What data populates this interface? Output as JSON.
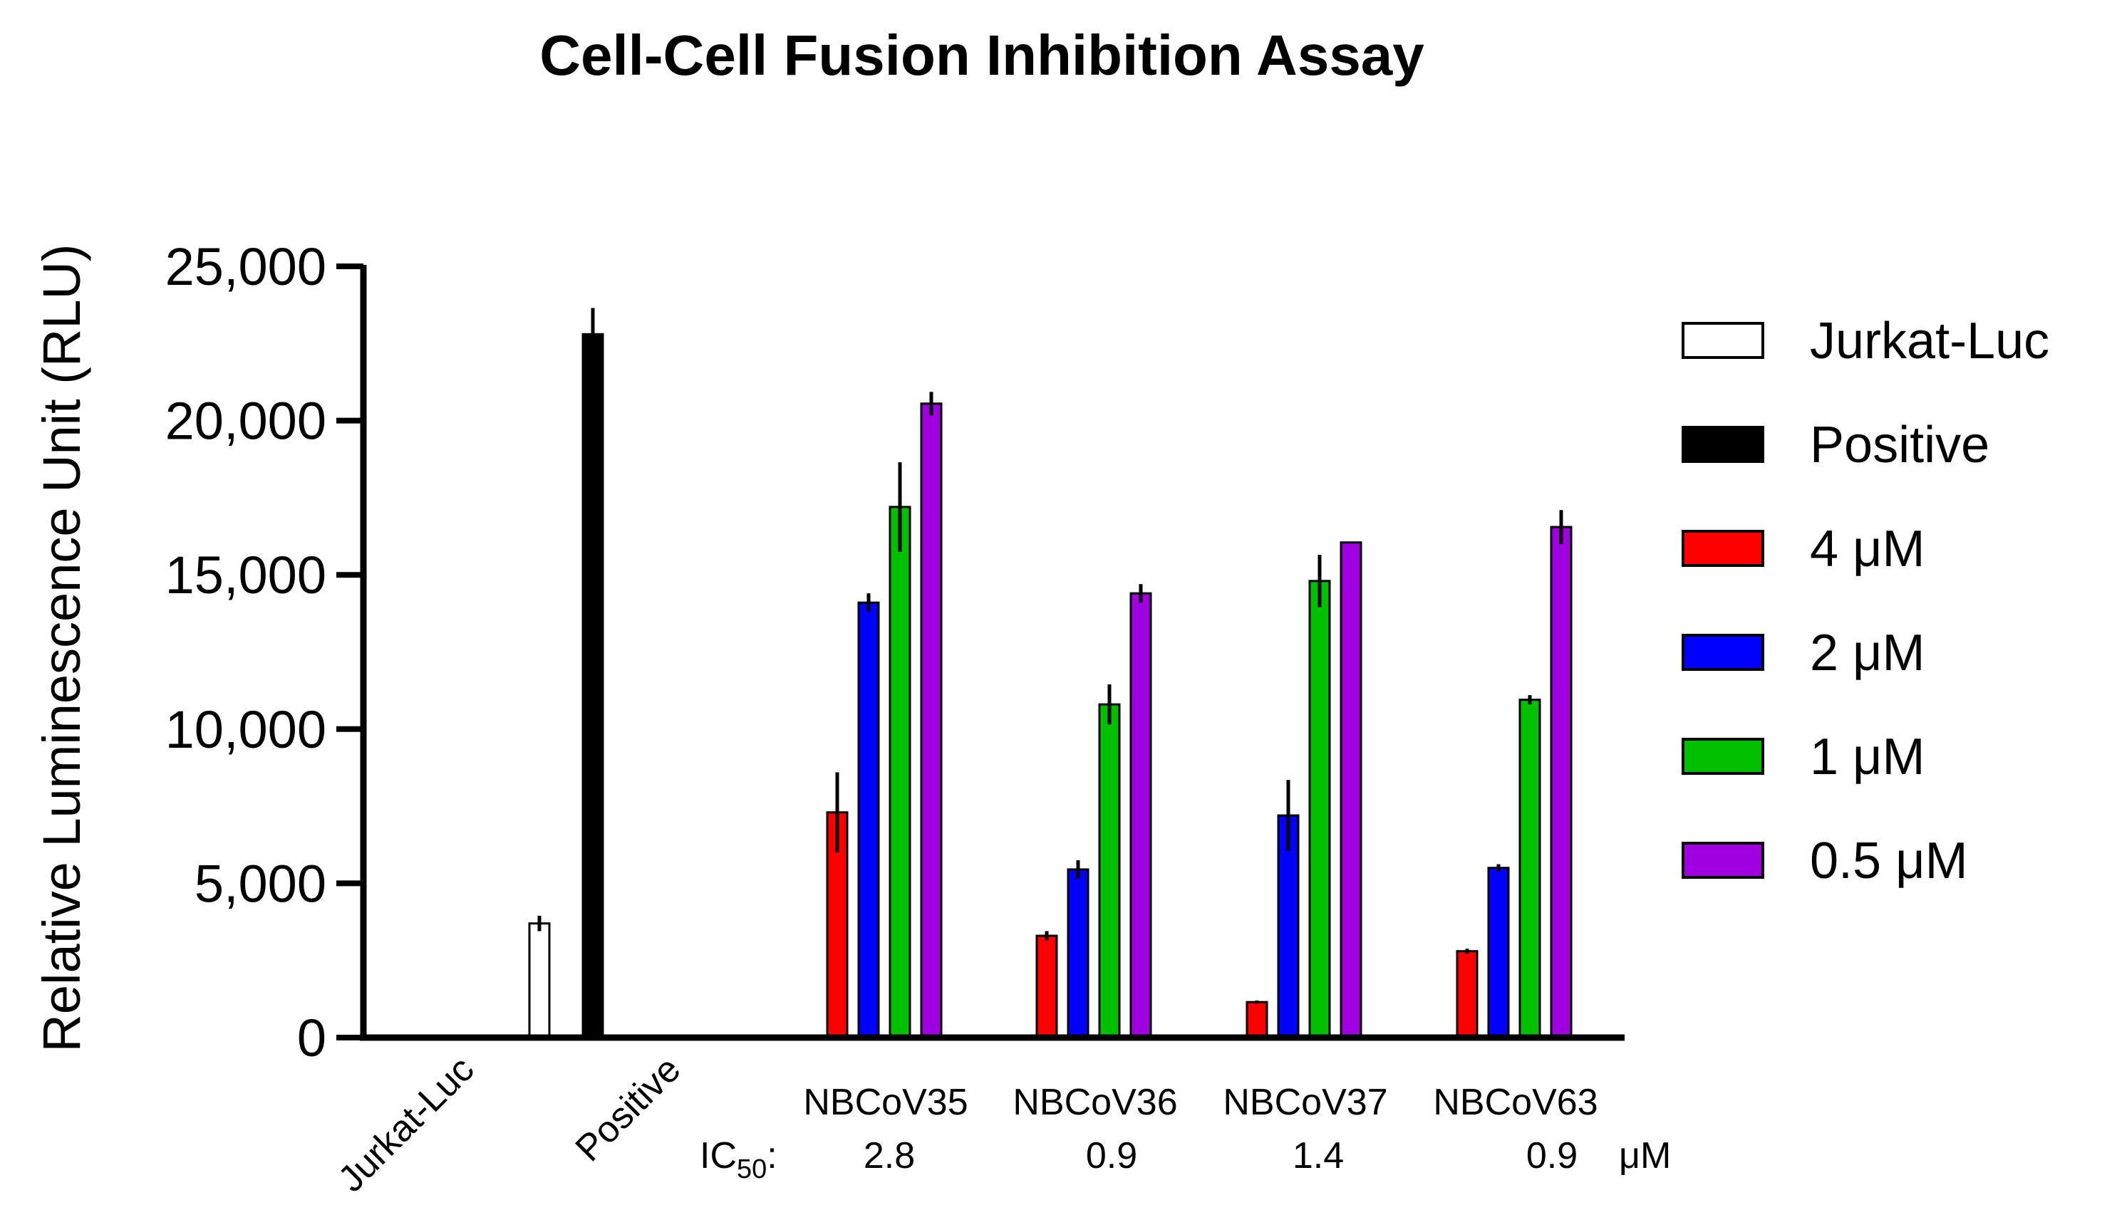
{
  "chart_data": {
    "type": "bar",
    "title": "Cell-Cell Fusion Inhibition Assay",
    "ylabel": "Relative Luminescence Unit (RLU)",
    "xlabel": "",
    "ylim": [
      0,
      25000
    ],
    "yticks": [
      0,
      5000,
      10000,
      15000,
      20000,
      25000
    ],
    "ytick_labels": [
      "0",
      "5,000",
      "10,000",
      "15,000",
      "20,000",
      "25,000"
    ],
    "legend_position": "right",
    "categories": [
      "Jurkat-Luc",
      "Positive",
      "NBCoV35",
      "NBCoV36",
      "NBCoV37",
      "NBCoV63"
    ],
    "ic50": {
      "label": "IC",
      "subscript": "50",
      "suffix": ":",
      "values": [
        "2.8",
        "0.9",
        "1.4",
        "0.9"
      ],
      "unit": "μM"
    },
    "series": [
      {
        "name": "Jurkat-Luc",
        "fill": "#ffffff",
        "values": [
          {
            "category": "Jurkat-Luc",
            "value": 3700,
            "error": 250
          }
        ]
      },
      {
        "name": "Positive",
        "fill": "#000000",
        "values": [
          {
            "category": "Positive",
            "value": 22800,
            "error": 850
          }
        ]
      },
      {
        "name": "4 μM",
        "fill": "#ff0000",
        "values": [
          {
            "category": "NBCoV35",
            "value": 7300,
            "error": 1300
          },
          {
            "category": "NBCoV36",
            "value": 3300,
            "error": 150
          },
          {
            "category": "NBCoV37",
            "value": 1150,
            "error": 50
          },
          {
            "category": "NBCoV63",
            "value": 2800,
            "error": 80
          }
        ]
      },
      {
        "name": "2 μM",
        "fill": "#0000ff",
        "values": [
          {
            "category": "NBCoV35",
            "value": 14100,
            "error": 300
          },
          {
            "category": "NBCoV36",
            "value": 5450,
            "error": 300
          },
          {
            "category": "NBCoV37",
            "value": 7200,
            "error": 1150
          },
          {
            "category": "NBCoV63",
            "value": 5500,
            "error": 120
          }
        ]
      },
      {
        "name": "1 μM",
        "fill": "#00c000",
        "values": [
          {
            "category": "NBCoV35",
            "value": 17200,
            "error": 1450
          },
          {
            "category": "NBCoV36",
            "value": 10800,
            "error": 650
          },
          {
            "category": "NBCoV37",
            "value": 14800,
            "error": 850
          },
          {
            "category": "NBCoV63",
            "value": 10950,
            "error": 150
          }
        ]
      },
      {
        "name": "0.5 μM",
        "fill": "#a000e0",
        "values": [
          {
            "category": "NBCoV35",
            "value": 20550,
            "error": 380
          },
          {
            "category": "NBCoV36",
            "value": 14400,
            "error": 300
          },
          {
            "category": "NBCoV37",
            "value": 16050,
            "error": 0
          },
          {
            "category": "NBCoV63",
            "value": 16550,
            "error": 550
          }
        ]
      }
    ]
  }
}
